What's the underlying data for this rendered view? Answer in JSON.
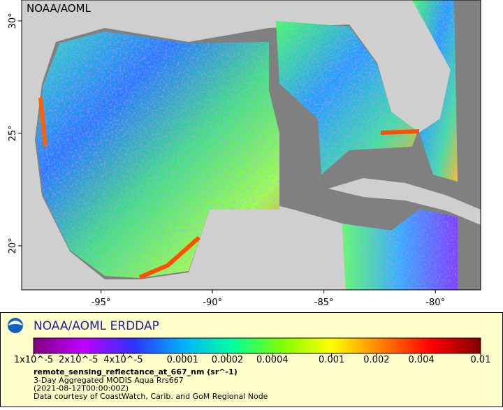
{
  "map": {
    "watermark": "NOAA/AOML",
    "xlim": [
      -98.56,
      -77.97
    ],
    "ylim": [
      18.04,
      30.93
    ],
    "xticks": [
      {
        "value": -95,
        "label": "-95°"
      },
      {
        "value": -90,
        "label": "-90°"
      },
      {
        "value": -85,
        "label": "-85°"
      },
      {
        "value": -80,
        "label": "-80°"
      }
    ],
    "yticks": [
      {
        "value": 20,
        "label": "20°"
      },
      {
        "value": 25,
        "label": "25°"
      },
      {
        "value": 30,
        "label": "30°"
      }
    ]
  },
  "legend": {
    "title": "NOAA/AOML ERDDAP",
    "colorbar": {
      "scale": "log",
      "xlim": [
        1e-05,
        0.01
      ],
      "colors": [
        "#800080",
        "#c000ff",
        "#3030ff",
        "#00b0ff",
        "#00ffa0",
        "#80ff00",
        "#ffff00",
        "#ff8000",
        "#ff0000",
        "#800000"
      ],
      "ticks": [
        {
          "value": 1e-05,
          "label": "1x10^-5"
        },
        {
          "value": 2e-05,
          "label": "2x10^-5"
        },
        {
          "value": 4e-05,
          "label": "4x10^-5"
        },
        0.0001,
        0.0002,
        0.0004,
        0.001,
        0.002,
        0.004,
        0.01
      ]
    },
    "variable": "remote_sensing_reflectance_at_667_nm (sr^-1)",
    "lines": [
      "3-Day Aggregated MODIS Aqua Rrs667",
      "(2021-08-12T00:00:00Z)",
      "Data courtesy of CoastWatch, Carib. and GoM Regional Node"
    ]
  }
}
